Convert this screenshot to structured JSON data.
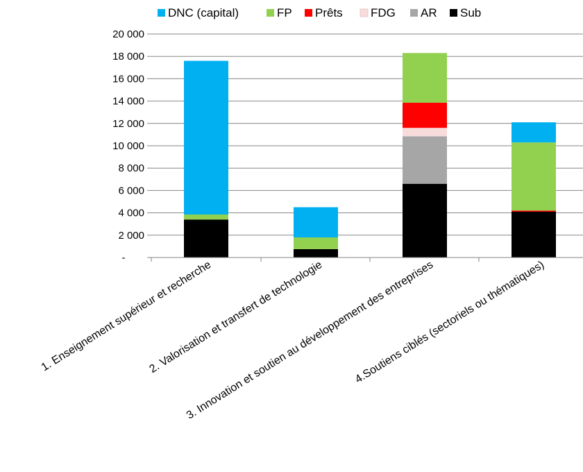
{
  "chart_data": {
    "type": "bar",
    "stacked": true,
    "categories": [
      "1. Enseignement supérieur et recherche",
      "2. Valorisation et transfert de technologie",
      "3. Innovation et soutien au développement des entreprises",
      "4.Soutiens ciblés (sectoriels ou thématiques)"
    ],
    "series": [
      {
        "name": "Sub",
        "color": "#000000",
        "values": [
          3400,
          750,
          6600,
          4100
        ]
      },
      {
        "name": "AR",
        "color": "#a6a6a6",
        "values": [
          0,
          0,
          4250,
          0
        ]
      },
      {
        "name": "FDG",
        "color": "#f8dcdc",
        "values": [
          0,
          0,
          750,
          0
        ]
      },
      {
        "name": "Prêts",
        "color": "#ff0000",
        "values": [
          0,
          0,
          2250,
          100
        ]
      },
      {
        "name": "FP",
        "color": "#92d050",
        "values": [
          450,
          1050,
          4450,
          6100
        ]
      },
      {
        "name": "DNC (capital)",
        "color": "#00b0f0",
        "values": [
          13750,
          2700,
          0,
          1800
        ]
      }
    ],
    "legend_order": [
      "DNC (capital)",
      "FP",
      "Prêts",
      "FDG",
      "AR",
      "Sub"
    ],
    "legend_position": "top",
    "y_ticks": [
      "-",
      "2 000",
      "4 000",
      "6 000",
      "8 000",
      "10 000",
      "12 000",
      "14 000",
      "16 000",
      "18 000",
      "20 000"
    ],
    "ylim": [
      0,
      20000
    ],
    "grid": true
  }
}
